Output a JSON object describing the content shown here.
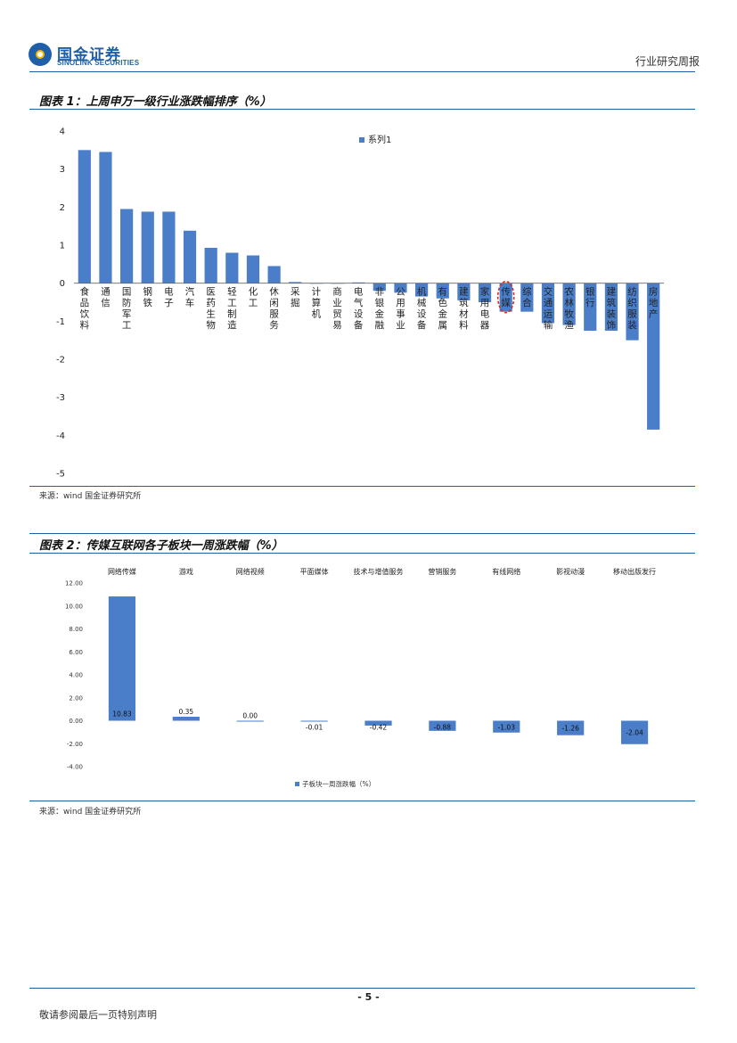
{
  "header": {
    "logo_cn": "国金证券",
    "logo_en": "SINOLINK SECURITIES",
    "report_type": "行业研究周报"
  },
  "figure1": {
    "title": "图表 1：上周申万一级行业涨跌幅排序（%）",
    "source": "来源：wind 国金证券研究所"
  },
  "figure2": {
    "title": "图表 2：传媒互联网各子板块一周涨跌幅（%）",
    "source": "来源：wind 国金证券研究所"
  },
  "footer": {
    "page_number": "- 5 -",
    "disclaimer": "敬请参阅最后一页特别声明"
  },
  "colors": {
    "bar": "#4a7ec9",
    "rule": "#1f5fa8",
    "highlight": "#d9281f"
  },
  "chart_data": [
    {
      "type": "bar",
      "categories": [
        "食品饮料",
        "通信",
        "国防军工",
        "钢铁",
        "电子",
        "汽车",
        "医药生物",
        "轻工制造",
        "化工",
        "休闲服务",
        "采掘",
        "计算机",
        "商业贸易",
        "电气设备",
        "非银金融",
        "公用事业",
        "机械设备",
        "有色金属",
        "建筑材料",
        "家用电器",
        "传媒",
        "综合",
        "交通运输",
        "农林牧渔",
        "银行",
        "建筑装饰",
        "纺织服装",
        "房地产"
      ],
      "series": [
        {
          "name": "系列1",
          "values": [
            3.5,
            3.45,
            1.95,
            1.88,
            1.88,
            1.38,
            0.93,
            0.8,
            0.73,
            0.45,
            0.03,
            0.0,
            -0.01,
            0.02,
            -0.2,
            -0.25,
            -0.35,
            -0.4,
            -0.45,
            -0.5,
            -0.75,
            -0.75,
            -1.05,
            -1.1,
            -1.25,
            -1.25,
            -1.5,
            -3.85
          ]
        }
      ],
      "ylim": [
        -5,
        4
      ],
      "yticks": [
        4,
        3,
        2,
        1,
        0,
        -1,
        -2,
        -3,
        -4,
        -5
      ],
      "highlight_category": "传媒",
      "legend": "top-right",
      "grid": false
    },
    {
      "type": "bar",
      "categories": [
        "网络传媒",
        "游戏",
        "网络视频",
        "平面媒体",
        "技术与增值服务",
        "营销服务",
        "有线网络",
        "影视动漫",
        "移动出版发行"
      ],
      "series": [
        {
          "name": "子板块一周涨跌幅（%）",
          "values": [
            10.83,
            0.35,
            0.0,
            -0.01,
            -0.42,
            -0.88,
            -1.03,
            -1.26,
            -2.04
          ]
        }
      ],
      "data_labels": [
        "10.83",
        "0.35",
        "0.00",
        "-0.01",
        "-0.42",
        "-0.88",
        "-1.03",
        "-1.26",
        "-2.04"
      ],
      "ylim": [
        -4,
        12
      ],
      "yticks": [
        "12.00",
        "10.00",
        "8.00",
        "6.00",
        "4.00",
        "2.00",
        "0.00",
        "-2.00",
        "-4.00"
      ],
      "legend": "bottom",
      "grid": false
    }
  ]
}
